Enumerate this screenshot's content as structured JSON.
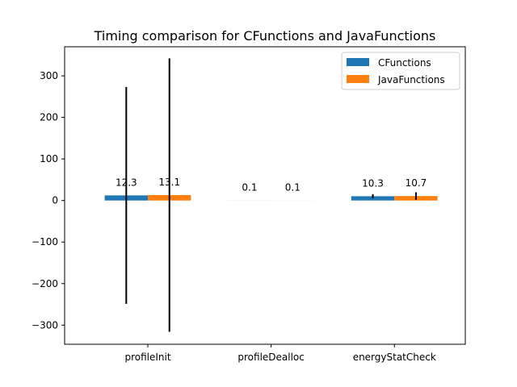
{
  "chart_data": {
    "type": "bar",
    "title": "Timing comparison for CFunctions and JavaFunctions",
    "xlabel": "",
    "ylabel": "",
    "categories": [
      "profileInit",
      "profileDealloc",
      "energyStatCheck"
    ],
    "series": [
      {
        "name": "CFunctions",
        "color": "#1f77b4",
        "values": [
          12.3,
          0.1,
          10.3
        ],
        "error": [
          261,
          0,
          5
        ],
        "labels": [
          "12.3",
          "0.1",
          "10.3"
        ]
      },
      {
        "name": "JavaFunctions",
        "color": "#ff7f0e",
        "values": [
          13.1,
          0.1,
          10.7
        ],
        "error": [
          329,
          0,
          9
        ],
        "labels": [
          "13.1",
          "0.1",
          "10.7"
        ]
      }
    ],
    "ylim": [
      -346,
      370
    ],
    "yticks": [
      -300,
      -200,
      -100,
      0,
      100,
      200,
      300
    ],
    "ytick_labels": [
      "−300",
      "−200",
      "−100",
      "0",
      "100",
      "200",
      "300"
    ],
    "grid": false,
    "legend_position": "upper right"
  }
}
